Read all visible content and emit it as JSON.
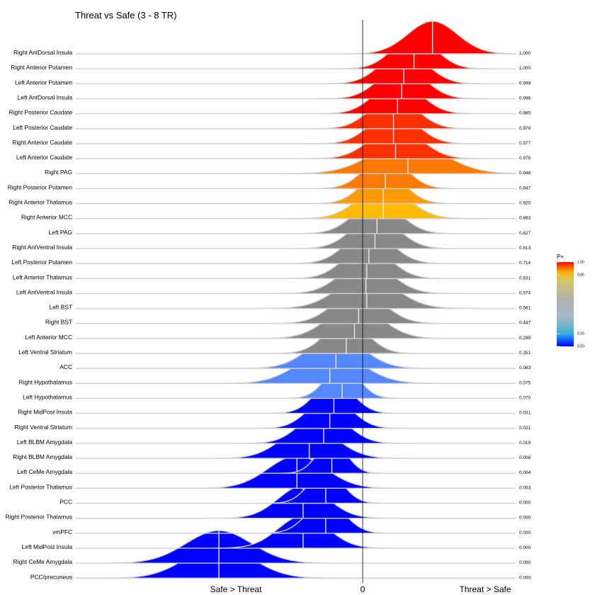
{
  "chart_data": {
    "type": "ridgeline",
    "title": "Threat vs Safe (3 - 8 TR)",
    "xlabel_left": "Safe > Threat",
    "xlabel_center": "0",
    "xlabel_right": "Threat > Safe",
    "colorbar": {
      "title": "P+",
      "ticks": [
        "1.00",
        "0.85",
        "0.15",
        "0.00"
      ],
      "tick_values": [
        1.0,
        0.85,
        0.15,
        0.0
      ]
    },
    "regions": [
      {
        "name": "Right AntDorsal Insula",
        "p": "1.000",
        "mean": 0.17,
        "sd": 0.06
      },
      {
        "name": "Right Anterior Putamen",
        "p": "1.000",
        "mean": 0.125,
        "sd": 0.052
      },
      {
        "name": "Left Anterior  Putamen",
        "p": "0.999",
        "mean": 0.1,
        "sd": 0.055
      },
      {
        "name": "Left AntDorsal Insula",
        "p": "0.996",
        "mean": 0.095,
        "sd": 0.055
      },
      {
        "name": "Right Posterior Caudate",
        "p": "0.985",
        "mean": 0.085,
        "sd": 0.055
      },
      {
        "name": "Left Posterior Caudate",
        "p": "0.979",
        "mean": 0.075,
        "sd": 0.055
      },
      {
        "name": "Right Anterior Caudate",
        "p": "0.977",
        "mean": 0.075,
        "sd": 0.055
      },
      {
        "name": "Left Anterior Caudate",
        "p": "0.976",
        "mean": 0.08,
        "sd": 0.06
      },
      {
        "name": "Right PAG",
        "p": "0.948",
        "mean": 0.11,
        "sd": 0.085
      },
      {
        "name": "Right Posterior Putamen",
        "p": "0.947",
        "mean": 0.055,
        "sd": 0.05
      },
      {
        "name": "Right Anterior Thalamus",
        "p": "0.920",
        "mean": 0.05,
        "sd": 0.05
      },
      {
        "name": "Right Anterior MCC",
        "p": "0.883",
        "mean": 0.05,
        "sd": 0.06
      },
      {
        "name": "Left PAG",
        "p": "0.827",
        "mean": 0.035,
        "sd": 0.055
      },
      {
        "name": "Right AntVentral Insula",
        "p": "0.813",
        "mean": 0.03,
        "sd": 0.055
      },
      {
        "name": "Left Posterior Putamen",
        "p": "0.714",
        "mean": 0.015,
        "sd": 0.055
      },
      {
        "name": "Left Anterior Thalamus",
        "p": "0.631",
        "mean": 0.01,
        "sd": 0.055
      },
      {
        "name": "Left AntVentral Insula",
        "p": "0.574",
        "mean": 0.008,
        "sd": 0.06
      },
      {
        "name": "Left BST",
        "p": "0.561",
        "mean": 0.01,
        "sd": 0.07
      },
      {
        "name": "Right BST",
        "p": "0.447",
        "mean": -0.01,
        "sd": 0.06
      },
      {
        "name": "Left Anterior MCC",
        "p": "0.299",
        "mean": -0.02,
        "sd": 0.065
      },
      {
        "name": "Left Ventral Striatum",
        "p": "0.251",
        "mean": -0.04,
        "sd": 0.05
      },
      {
        "name": "ACC",
        "p": "0.083",
        "mean": -0.065,
        "sd": 0.065
      },
      {
        "name": "Right Hypothalamus",
        "p": "0.075",
        "mean": -0.08,
        "sd": 0.075
      },
      {
        "name": "Left Hypothalamus",
        "p": "0.070",
        "mean": -0.05,
        "sd": 0.04
      },
      {
        "name": "Right MidPost Insula",
        "p": "0.031",
        "mean": -0.07,
        "sd": 0.045
      },
      {
        "name": "Right Ventral Striatum",
        "p": "0.021",
        "mean": -0.08,
        "sd": 0.05
      },
      {
        "name": "Left BLBM Amygdala",
        "p": "0.019",
        "mean": -0.095,
        "sd": 0.055
      },
      {
        "name": "Right BLBM Amygdala",
        "p": "0.008",
        "mean": -0.13,
        "sd": 0.065
      },
      {
        "name": "Left CeMe Amygdala",
        "p": "0.004",
        "mean": -0.075,
        "sd": 0.035
      },
      {
        "name": "Left Posterior Thalamus",
        "p": "0.003",
        "mean": -0.16,
        "sd": 0.07
      },
      {
        "name": "PCC",
        "p": "0.000",
        "mean": -0.09,
        "sd": 0.04
      },
      {
        "name": "Right Posterior Thalamus",
        "p": "0.000",
        "mean": -0.145,
        "sd": 0.06
      },
      {
        "name": "vmPFC",
        "p": "0.000",
        "mean": -0.09,
        "sd": 0.045
      },
      {
        "name": "Left MidPost Insula",
        "p": "0.000",
        "mean": -0.145,
        "sd": 0.06
      },
      {
        "name": "Right CeMe Amygdala",
        "p": "0.000",
        "mean": -0.35,
        "sd": 0.08
      },
      {
        "name": "PCC/precuneus",
        "p": "0.000",
        "mean": -0.35,
        "sd": 0.08
      }
    ]
  }
}
